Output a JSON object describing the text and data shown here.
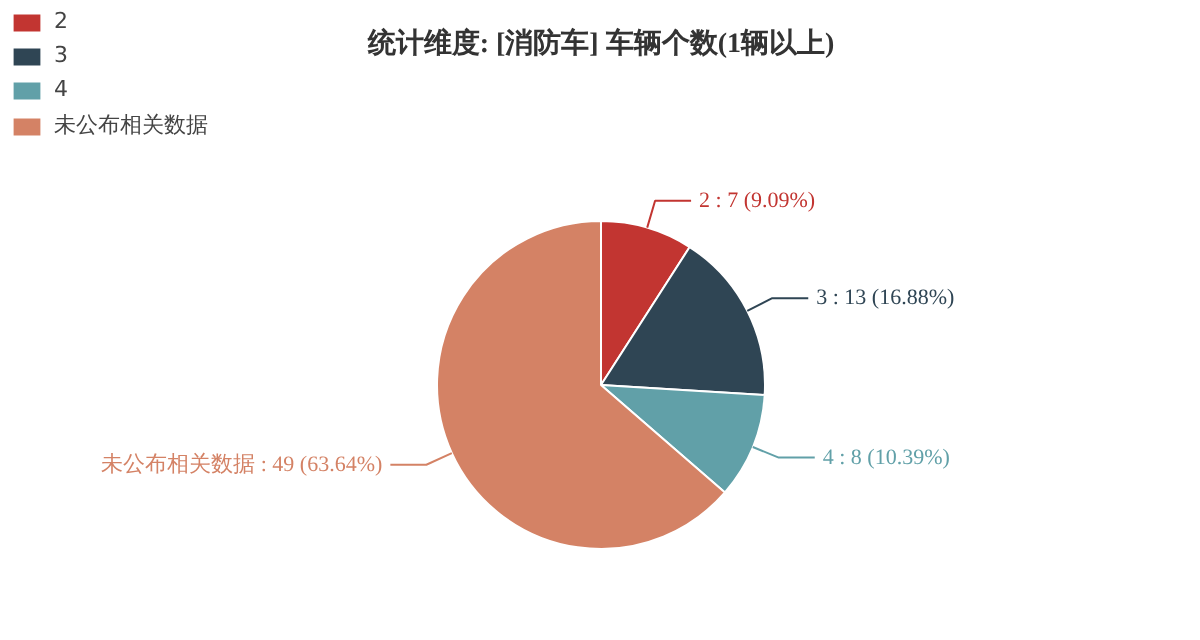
{
  "chart_data": {
    "type": "pie",
    "title": "统计维度: [消防车] 车辆个数(1辆以上)",
    "categories": [
      "2",
      "3",
      "4",
      "未公布相关数据"
    ],
    "values": [
      7,
      13,
      8,
      49
    ],
    "colors": [
      "#c23531",
      "#2f4554",
      "#61a0a8",
      "#d48265"
    ],
    "value_labels": [
      "2 : 7 (9.09%)",
      "3 : 13 (16.88%)",
      "4 : 8 (10.39%)",
      "未公布相关数据 : 49 (63.64%)"
    ],
    "legend": "top left"
  }
}
